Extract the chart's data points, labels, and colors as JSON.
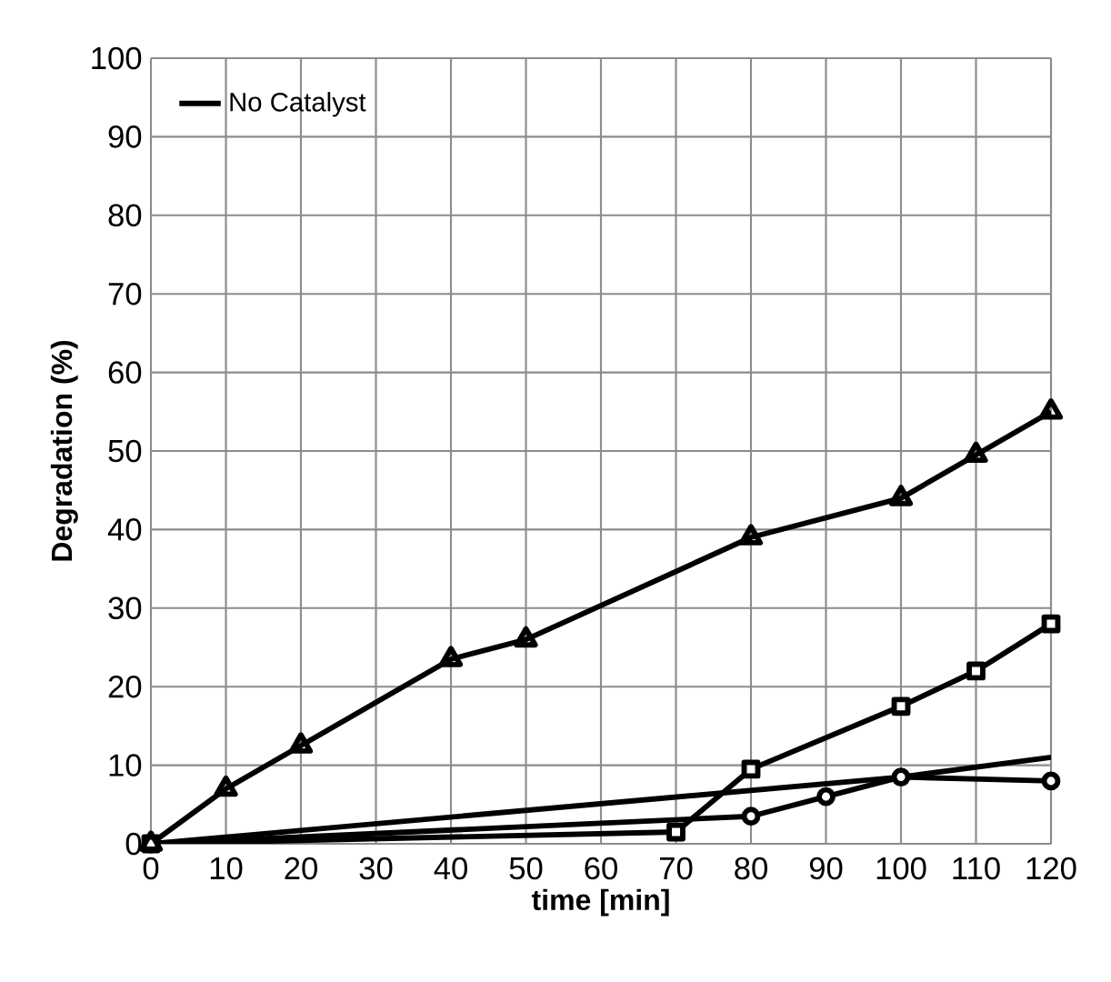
{
  "chart_data": {
    "type": "line",
    "xlabel": "time [min]",
    "ylabel": "Degradation (%)",
    "xlim": [
      0,
      120
    ],
    "xticks": [
      0,
      10,
      20,
      30,
      40,
      50,
      60,
      70,
      80,
      90,
      100,
      110,
      120
    ],
    "ylim": [
      0,
      100
    ],
    "yticks": [
      0,
      10,
      20,
      30,
      40,
      50,
      60,
      70,
      80,
      90,
      100
    ],
    "grid": true,
    "legend": "top left",
    "series": [
      {
        "name": "No Catalyst",
        "color": "#000000",
        "x": [
          0,
          100,
          120
        ],
        "values": [
          0,
          8.5,
          11
        ]
      },
      {
        "color": "#000000",
        "marker": "triangle",
        "x": [
          0,
          10,
          20,
          40,
          50,
          80,
          100,
          110,
          120
        ],
        "values": [
          0,
          7,
          12.5,
          23.5,
          26,
          39,
          44,
          49.5,
          55
        ]
      },
      {
        "color": "#000000",
        "marker": "square",
        "x": [
          0,
          70,
          80,
          100,
          110,
          120
        ],
        "values": [
          0,
          1.5,
          9.5,
          17.5,
          22,
          28
        ]
      },
      {
        "color": "#000000",
        "marker": "circle",
        "x": [
          0,
          80,
          90,
          100,
          120
        ],
        "values": [
          0,
          3.5,
          6,
          8.5,
          8
        ]
      }
    ]
  }
}
